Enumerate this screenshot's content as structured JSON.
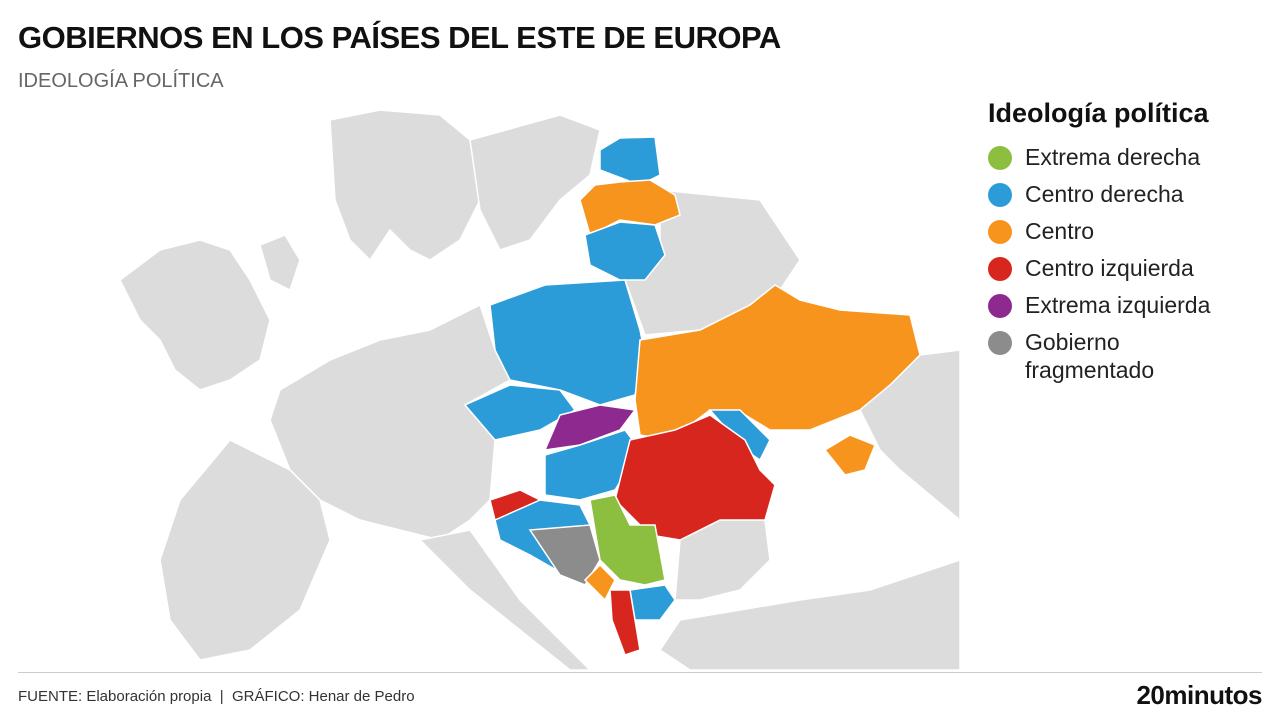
{
  "header": {
    "title": "GOBIERNOS EN LOS PAÍSES DEL ESTE DE EUROPA",
    "subtitle": "IDEOLOGÍA POLÍTICA"
  },
  "legend": {
    "title": "Ideología política",
    "items": [
      {
        "label": "Extrema derecha",
        "color": "#8cbf3f"
      },
      {
        "label": "Centro derecha",
        "color": "#2b9cd8"
      },
      {
        "label": "Centro",
        "color": "#f7941d"
      },
      {
        "label": "Centro izquierda",
        "color": "#d7261e"
      },
      {
        "label": "Extrema izquierda",
        "color": "#8e2a8f"
      },
      {
        "label": "Gobierno fragmentado",
        "color": "#8c8c8c"
      }
    ]
  },
  "footer": {
    "source": "FUENTE: Elaboración propia  |  GRÁFICO: Henar de Pedro",
    "brand": "20minutos"
  }
}
